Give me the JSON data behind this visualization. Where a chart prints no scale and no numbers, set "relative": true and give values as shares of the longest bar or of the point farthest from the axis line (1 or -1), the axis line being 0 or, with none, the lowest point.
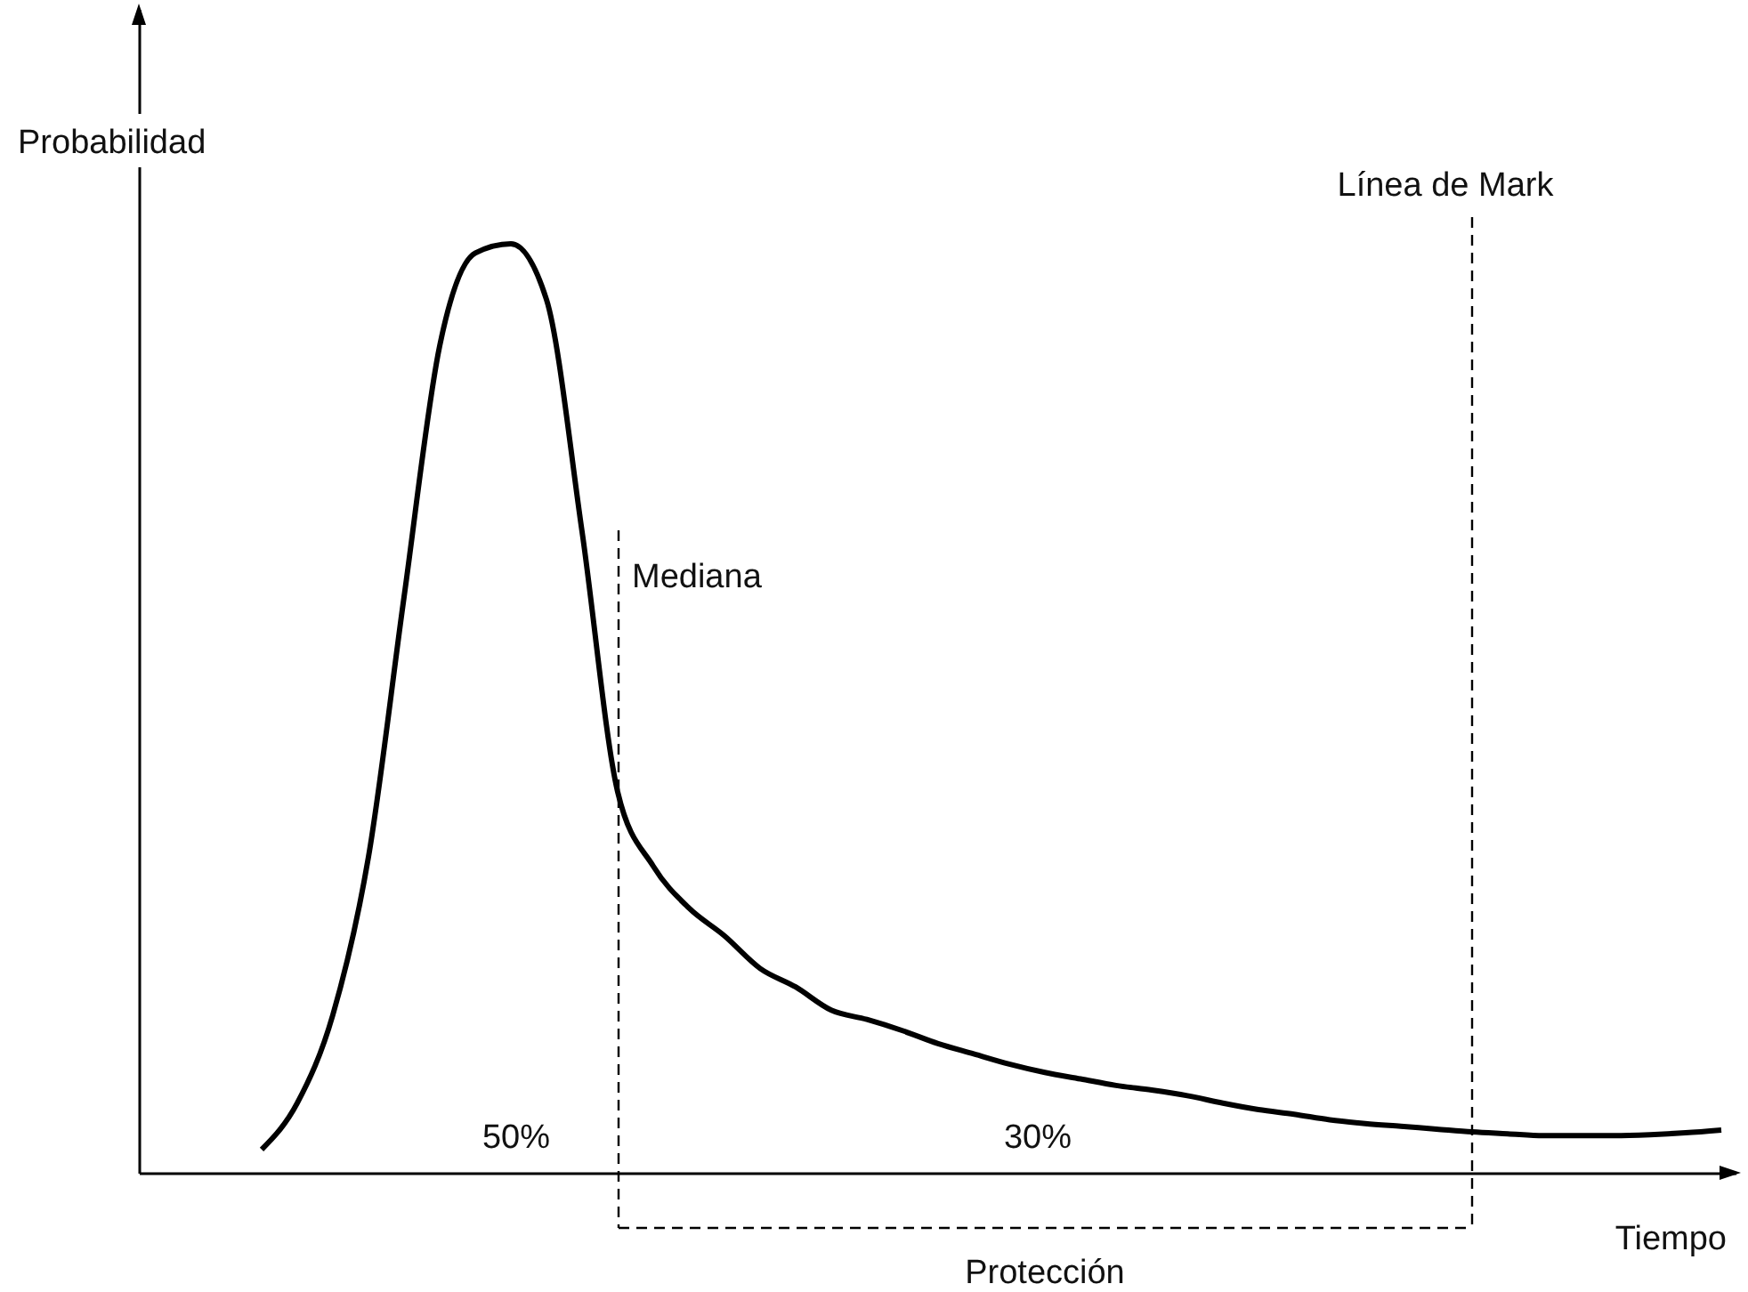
{
  "chart_data": {
    "type": "line",
    "relative": true,
    "xlabel": "Tiempo",
    "ylabel": "Probabilidad",
    "categories": [
      null,
      null,
      null,
      null,
      null,
      null,
      null,
      null,
      null,
      null,
      null,
      null,
      null,
      null,
      null,
      null,
      null,
      null,
      null,
      null,
      null,
      null,
      null,
      null,
      null,
      null,
      null,
      null,
      null,
      null,
      null,
      null,
      null,
      null,
      null,
      null,
      null,
      null,
      null,
      null,
      null,
      null
    ],
    "series": [
      {
        "color": "#000000",
        "values": [
          0.025,
          0.075,
          0.17,
          0.34,
          0.62,
          0.89,
          0.99,
          1,
          0.94,
          0.69,
          0.41,
          0.33,
          0.285,
          0.255,
          0.22,
          0.2,
          0.175,
          0.165,
          0.153,
          0.139,
          0.128,
          0.117,
          0.108,
          0.101,
          0.094,
          0.089,
          0.083,
          0.075,
          0.068,
          0.063,
          0.057,
          0.053,
          0.05,
          0.047,
          0.044,
          0.042,
          0.04,
          0.04,
          0.04,
          0.041,
          0.043,
          0.046
        ]
      }
    ],
    "annotations": [
      "Mediana",
      "Línea de Mark",
      "50%",
      "30%",
      "Protección"
    ],
    "marker": "none",
    "line_style": "solid",
    "grid": false,
    "tick_labels": false
  }
}
